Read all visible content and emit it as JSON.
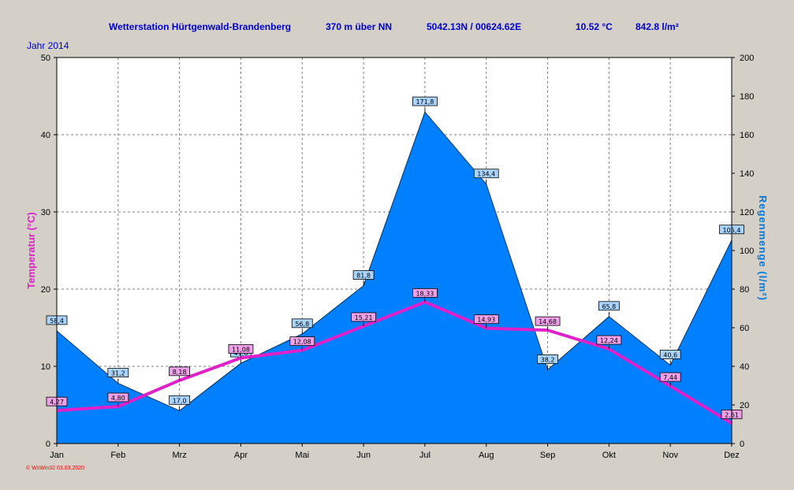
{
  "header": {
    "station": "Wetterstation Hürtgenwald-Brandenberg",
    "altitude": "370 m über NN",
    "coordinates": "5042.13N / 00624.62E",
    "avg_temp": "10.52 °C",
    "total_rain": "842.8 l/m²",
    "year": "Jahr  2014"
  },
  "footer": {
    "credit": "© WsWin32  03.03.2020"
  },
  "colors": {
    "background": "#d4d0c8",
    "plot_background": "#ffffff",
    "rain_fill": "#0080ff",
    "temperature_line": "#e020c8",
    "temperature_axis_label": "#e020c8",
    "rain_axis_label": "#0078e0",
    "title_text": "#0000cc",
    "footer_text": "#ff0000"
  },
  "chart_data": {
    "type": "area",
    "categories": [
      "Jan",
      "Feb",
      "Mrz",
      "Apr",
      "Mai",
      "Jun",
      "Jul",
      "Aug",
      "Sep",
      "Okt",
      "Nov",
      "Dez"
    ],
    "series": [
      {
        "name": "Regenmenge",
        "type": "area",
        "axis": "right",
        "values": [
          58.4,
          31.2,
          17.0,
          41.6,
          56.8,
          81.8,
          171.8,
          134.4,
          38.2,
          65.8,
          40.6,
          105.4
        ],
        "labels": [
          "58,4",
          "31,2",
          "17,0",
          "41,6",
          "56,8",
          "81,8",
          "171,8",
          "134,4",
          "38,2",
          "65,8",
          "40,6",
          "105,4"
        ]
      },
      {
        "name": "Temperatur",
        "type": "line",
        "axis": "left",
        "values": [
          4.27,
          4.8,
          8.18,
          11.08,
          12.08,
          15.21,
          18.33,
          14.93,
          14.68,
          12.24,
          7.44,
          2.61
        ],
        "labels": [
          "4,27",
          "4,80",
          "8,18",
          "11,08",
          "12,08",
          "15,21",
          "18,33",
          "14,93",
          "14,68",
          "12,24",
          "7,44",
          "2,61"
        ]
      }
    ],
    "y_left": {
      "label": "Temperatur  (°C)",
      "range": [
        0,
        50
      ],
      "ticks": [
        "0",
        "10",
        "20",
        "30",
        "40",
        "50"
      ]
    },
    "y_right": {
      "label": "Regenmenge  (l/m²)",
      "range": [
        0,
        200
      ],
      "ticks": [
        "0",
        "20",
        "40",
        "60",
        "80",
        "100",
        "120",
        "140",
        "160",
        "180",
        "200"
      ]
    },
    "grid": true,
    "legend": "none"
  }
}
